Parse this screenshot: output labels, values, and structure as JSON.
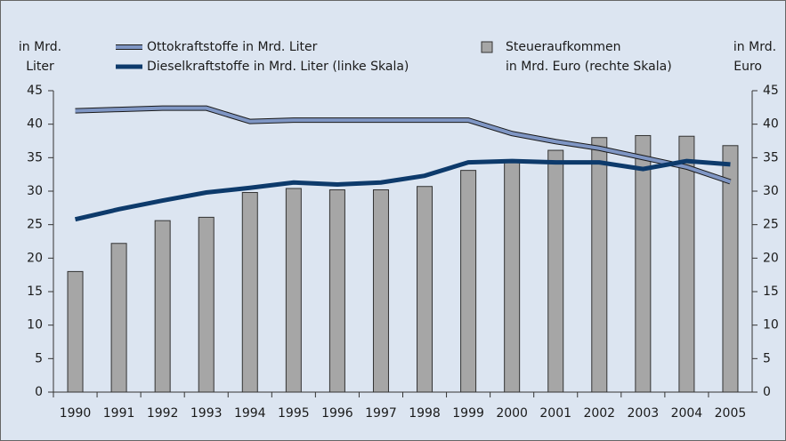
{
  "chart_data": {
    "type": "combo",
    "y_label": [
      "in Mrd.",
      "Liter"
    ],
    "y2_label": [
      "in Mrd.",
      "Euro"
    ],
    "categories": [
      "1990",
      "1991",
      "1992",
      "1993",
      "1994",
      "1995",
      "1996",
      "1997",
      "1998",
      "1999",
      "2000",
      "2001",
      "2002",
      "2003",
      "2004",
      "2005"
    ],
    "ylim": [
      0,
      45
    ],
    "yticks": [
      0,
      5,
      10,
      15,
      20,
      25,
      30,
      35,
      40,
      45
    ],
    "y2lim": [
      0,
      45
    ],
    "y2ticks": [
      0,
      5,
      10,
      15,
      20,
      25,
      30,
      35,
      40,
      45
    ],
    "series": [
      {
        "name": [
          "Steueraufkommen",
          "in Mrd. Euro (rechte Skala)"
        ],
        "type": "bar",
        "axis": "y2",
        "color": "#a6a6a6",
        "values": [
          18,
          22.2,
          25.6,
          26.1,
          29.8,
          30.4,
          30.2,
          30.2,
          30.7,
          33.1,
          34.6,
          36.1,
          38.0,
          38.3,
          38.2,
          36.8
        ]
      },
      {
        "name": "Ottokraftstoffe in Mrd. Liter",
        "type": "line",
        "color": "#7f96c4",
        "values": [
          42,
          42.2,
          42.4,
          42.4,
          40.4,
          40.6,
          40.6,
          40.6,
          40.6,
          40.6,
          38.6,
          37.4,
          36.4,
          35,
          33.6,
          31.4
        ]
      },
      {
        "name": "Dieselkraftstoffe in Mrd. Liter (linke Skala)",
        "type": "line",
        "color": "#0d3a6b",
        "values": [
          25.8,
          27.3,
          28.6,
          29.8,
          30.5,
          31.3,
          31.0,
          31.3,
          32.3,
          34.3,
          34.5,
          34.3,
          34.3,
          33.3,
          34.5,
          34.0
        ]
      }
    ]
  }
}
